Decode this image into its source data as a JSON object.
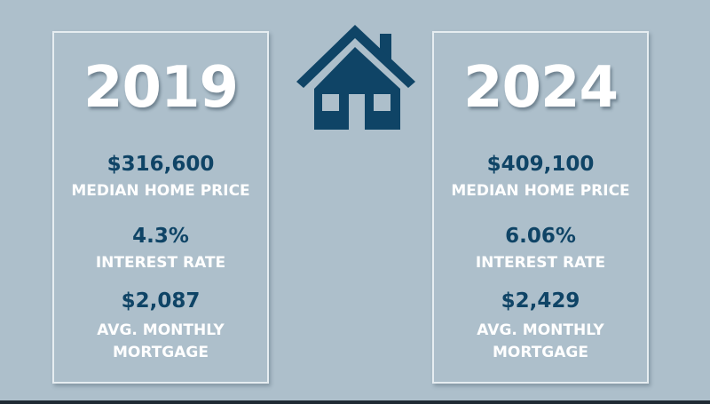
{
  "colors": {
    "background": "#adbfcb",
    "accent": "#0f4466",
    "text_light": "#ffffff"
  },
  "icon": "house-icon",
  "panels": [
    {
      "year": "2019",
      "median_price": "$316,600",
      "median_price_label": "MEDIAN HOME PRICE",
      "interest_rate": "4.3%",
      "interest_rate_label": "INTEREST RATE",
      "monthly_mortgage": "$2,087",
      "monthly_mortgage_label_1": "AVG. MONTHLY",
      "monthly_mortgage_label_2": "MORTGAGE"
    },
    {
      "year": "2024",
      "median_price": "$409,100",
      "median_price_label": "MEDIAN HOME PRICE",
      "interest_rate": "6.06%",
      "interest_rate_label": "INTEREST RATE",
      "monthly_mortgage": "$2,429",
      "monthly_mortgage_label_1": "AVG. MONTHLY",
      "monthly_mortgage_label_2": "MORTGAGE"
    }
  ]
}
